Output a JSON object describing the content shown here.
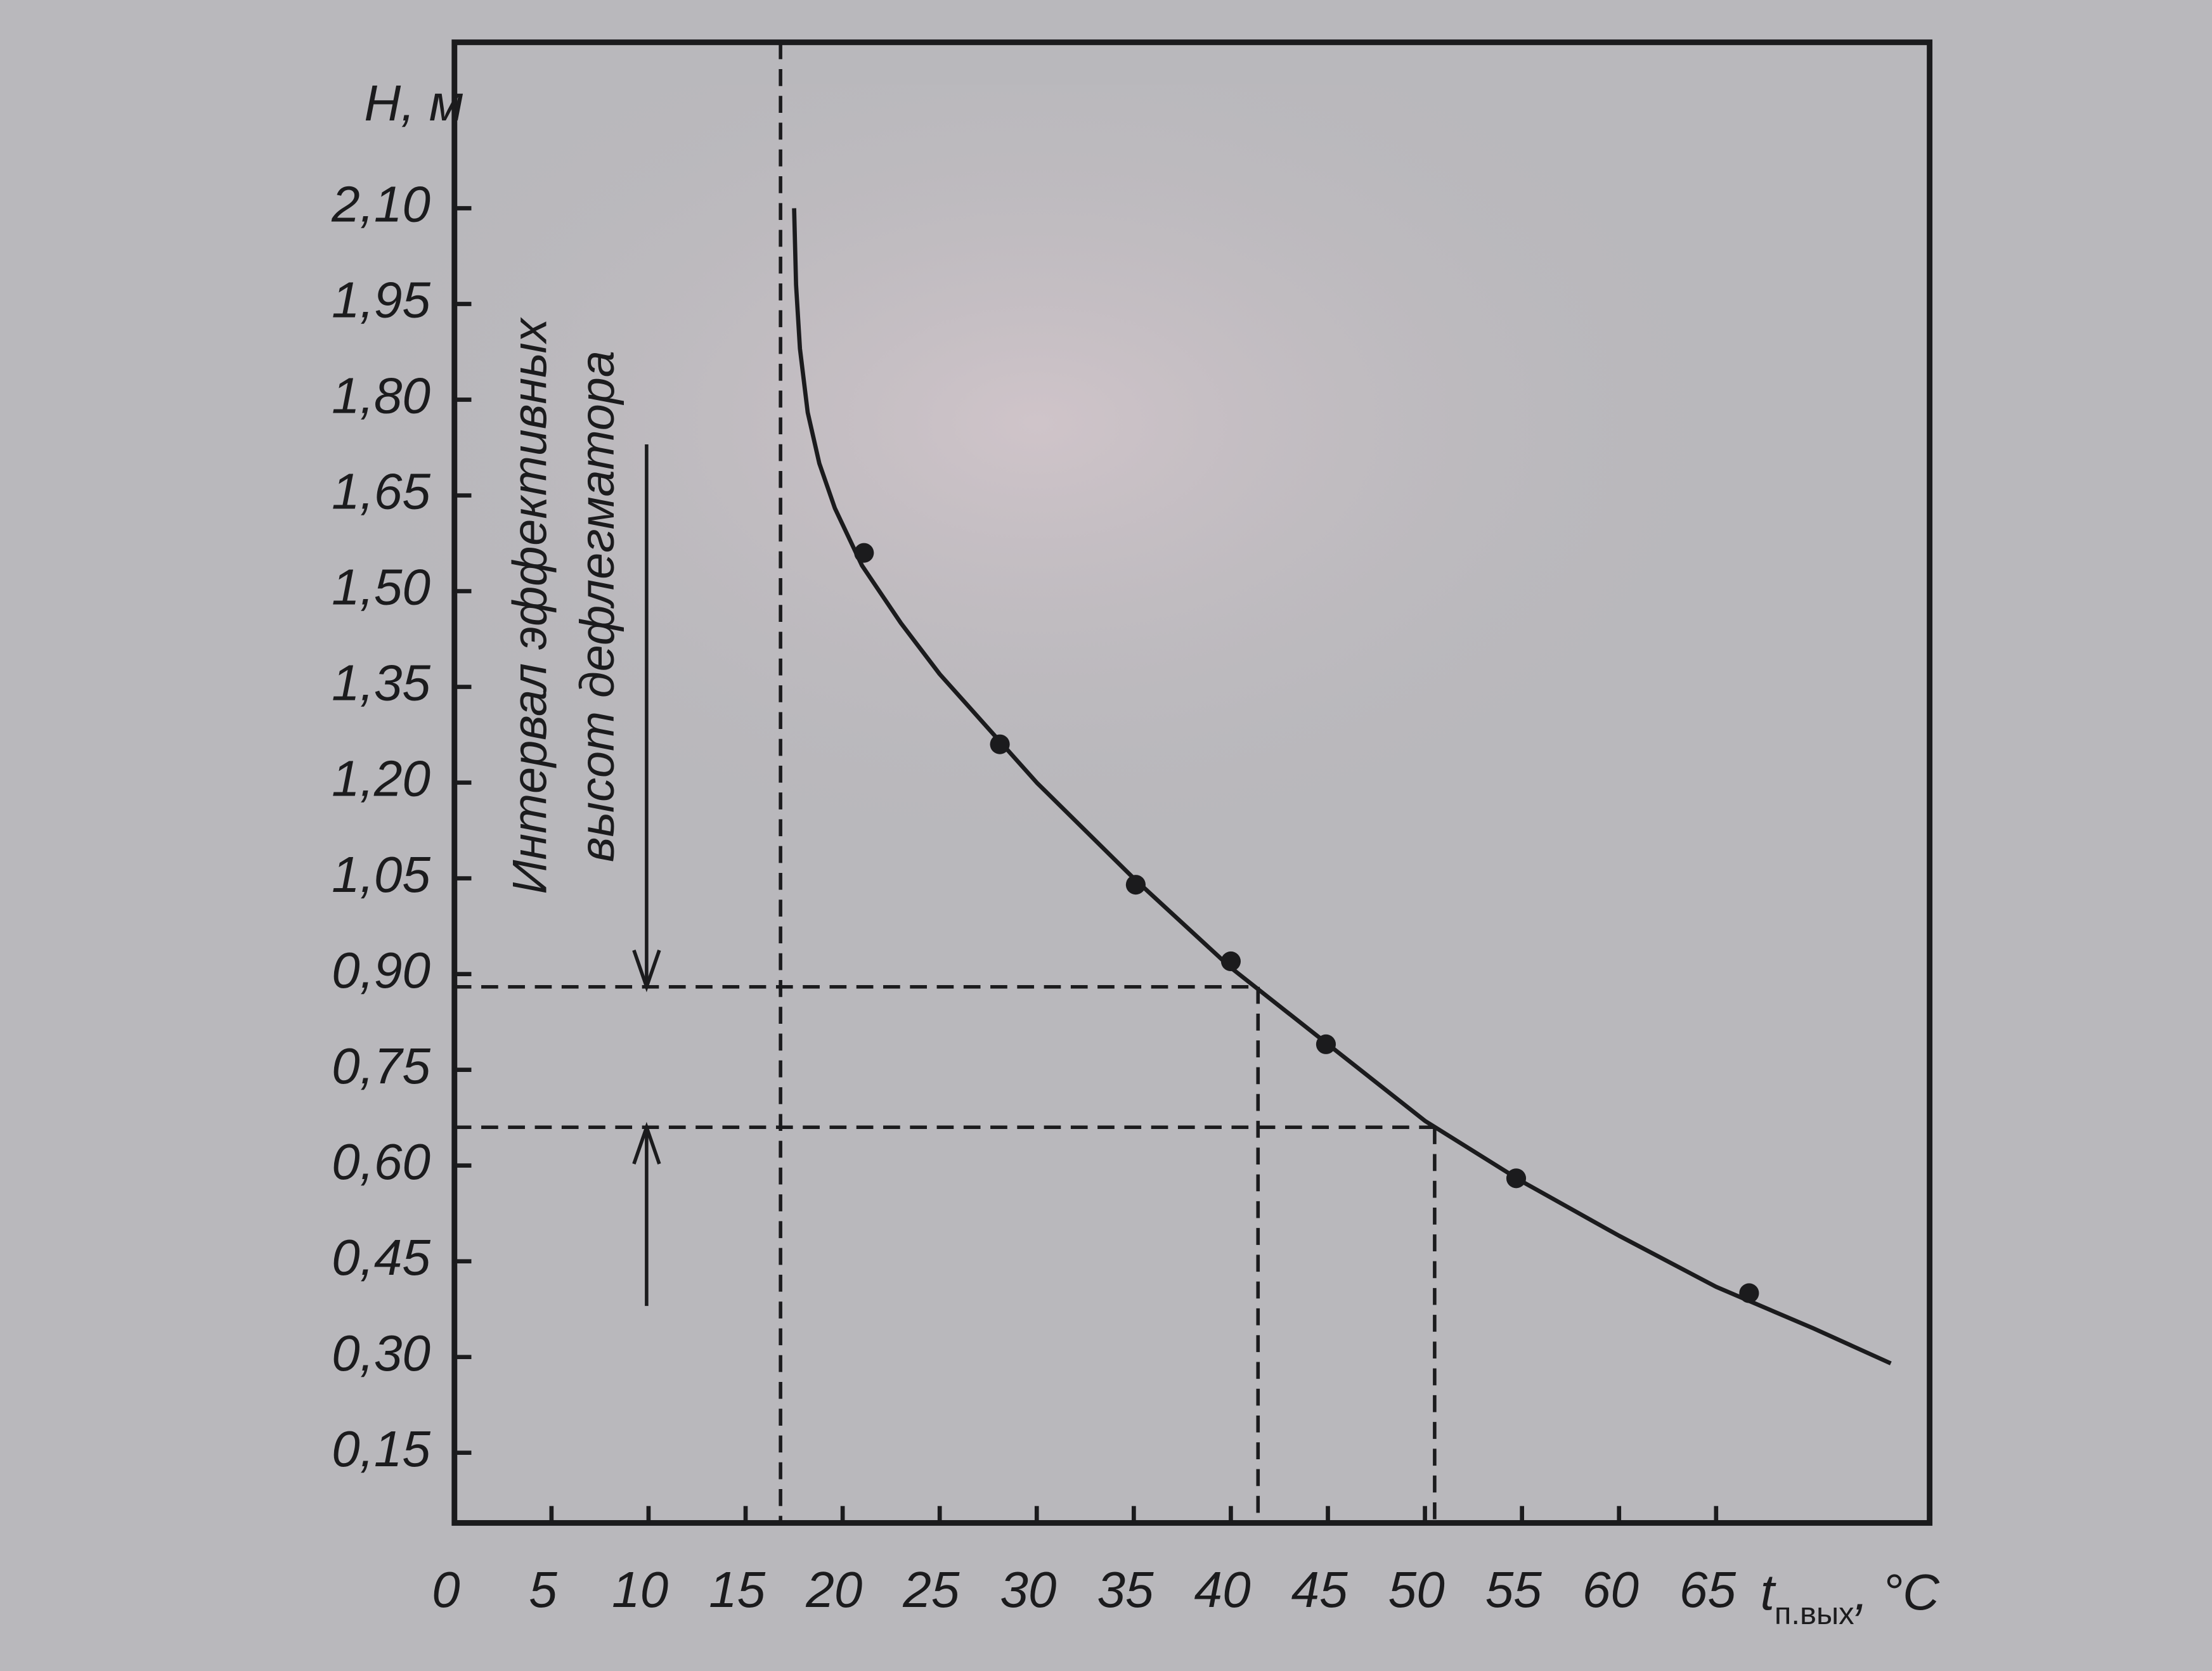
{
  "chart_data": {
    "type": "line",
    "y_label": "H, м",
    "x_label": "t",
    "x_label_subscript": "п.вых",
    "x_label_unit": ", °C",
    "xlim": [
      0,
      76
    ],
    "ylim": [
      0.04,
      2.36
    ],
    "xticks": [
      0,
      5,
      10,
      15,
      20,
      25,
      30,
      35,
      40,
      45,
      50,
      55,
      60,
      65
    ],
    "yticks": [
      {
        "value": 0.15,
        "label": "0,15"
      },
      {
        "value": 0.3,
        "label": "0,30"
      },
      {
        "value": 0.45,
        "label": "0,45"
      },
      {
        "value": 0.6,
        "label": "0,60"
      },
      {
        "value": 0.75,
        "label": "0,75"
      },
      {
        "value": 0.9,
        "label": "0,90"
      },
      {
        "value": 1.05,
        "label": "1,05"
      },
      {
        "value": 1.2,
        "label": "1,20"
      },
      {
        "value": 1.35,
        "label": "1,35"
      },
      {
        "value": 1.5,
        "label": "1,50"
      },
      {
        "value": 1.65,
        "label": "1,65"
      },
      {
        "value": 1.8,
        "label": "1,80"
      },
      {
        "value": 1.95,
        "label": "1,95"
      },
      {
        "value": 2.1,
        "label": "2,10"
      }
    ],
    "color": "#1b1b1d",
    "series": [
      {
        "color": "#1b1b1d",
        "x": [
          17.5,
          17.6,
          17.8,
          18.2,
          18.8,
          19.6,
          21,
          23,
          25,
          30,
          35,
          40,
          45,
          50,
          55,
          60,
          65,
          70,
          74
        ],
        "values": [
          2.1,
          1.98,
          1.88,
          1.78,
          1.7,
          1.63,
          1.54,
          1.45,
          1.37,
          1.2,
          1.05,
          0.91,
          0.79,
          0.67,
          0.575,
          0.49,
          0.41,
          0.345,
          0.29
        ]
      }
    ],
    "points": {
      "x": [
        21.1,
        28.1,
        35.1,
        40.0,
        44.9,
        54.7,
        66.7
      ],
      "values": [
        1.56,
        1.26,
        1.04,
        0.92,
        0.79,
        0.58,
        0.4
      ]
    },
    "guides": {
      "t_min": 16.8,
      "h_upper": 0.88,
      "t_upper": 41.4,
      "h_lower": 0.66,
      "t_lower": 50.5
    },
    "annotation": {
      "lines": [
        "Интервал эффективныx",
        "высот дефлегматора"
      ],
      "arrow_x": 9.9,
      "arrow_top": 1.73,
      "arrow_bottom": 0.38
    }
  }
}
